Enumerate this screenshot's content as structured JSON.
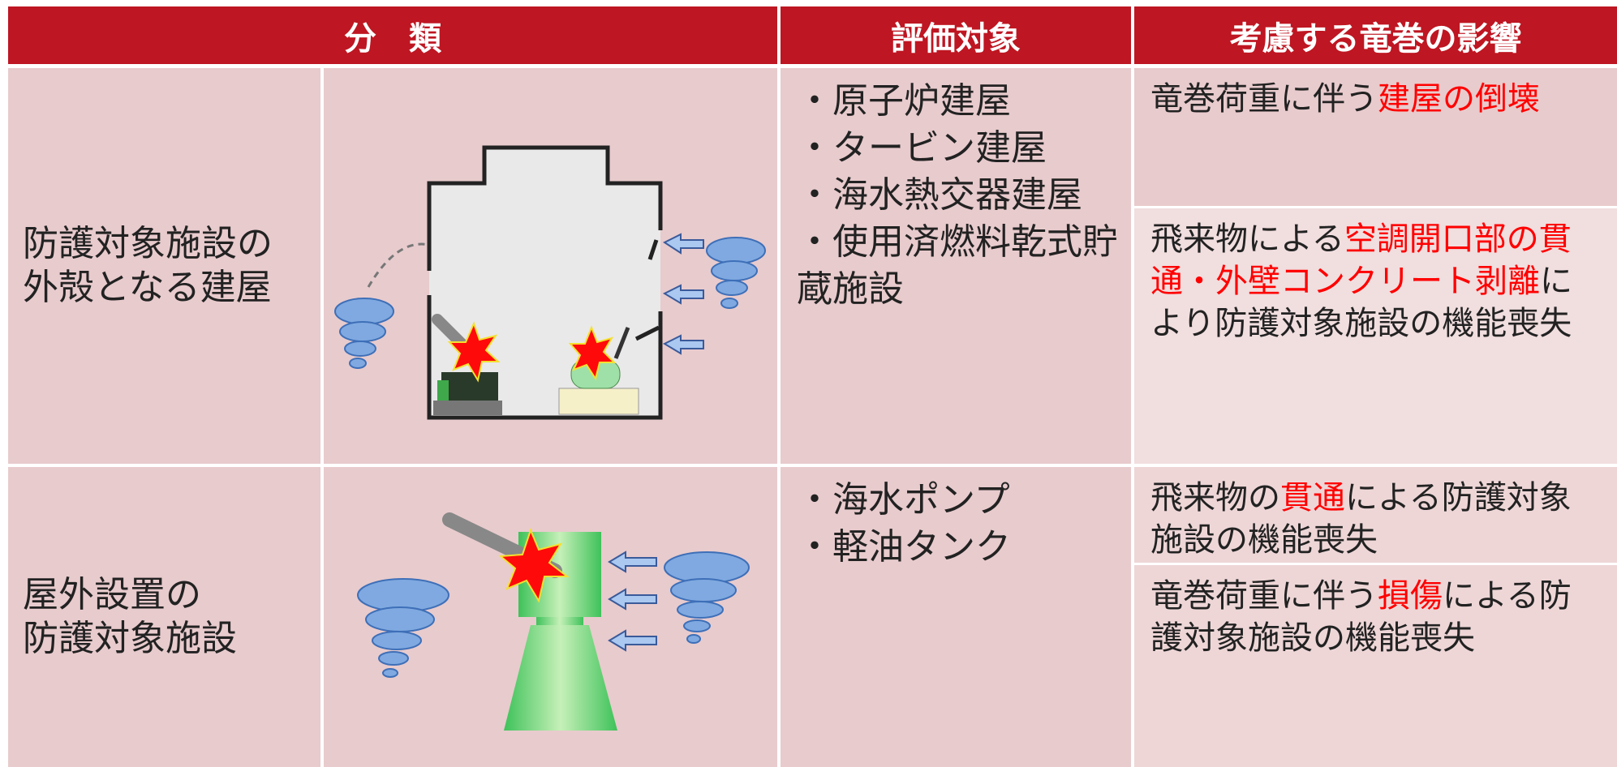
{
  "header": [
    "分　類",
    "評価対象",
    "考慮する竜巻の影響"
  ],
  "rows": [
    {
      "category": [
        "防護対象施設の",
        "外殻となる建屋"
      ],
      "targets": [
        "・原子炉建屋",
        "・タービン建屋",
        "・海水熱交器建屋",
        "・使用済燃料乾式貯蔵施設"
      ],
      "effects": [
        [
          {
            "text": "竜巻荷重に伴う"
          },
          {
            "text": "建屋の倒壊",
            "highlight": true
          }
        ],
        [
          {
            "text": "飛来物による"
          },
          {
            "text": "空調開口部の貫通・外壁コンクリート剥離",
            "highlight": true
          },
          {
            "text": "により防護対象施設の機能喪失"
          }
        ]
      ]
    },
    {
      "category": [
        "屋外設置の",
        "防護対象施設"
      ],
      "targets": [
        "・海水ポンプ",
        "・軽油タンク"
      ],
      "effects": [
        [
          {
            "text": "飛来物の"
          },
          {
            "text": "貫通",
            "highlight": true
          },
          {
            "text": "による防護対象施設の機能喪失"
          }
        ],
        [
          {
            "text": "竜巻荷重に伴う"
          },
          {
            "text": "損傷",
            "highlight": true
          },
          {
            "text": "による防護対象施設の機能喪失"
          }
        ]
      ]
    }
  ],
  "highlight_color": "#ff0000"
}
